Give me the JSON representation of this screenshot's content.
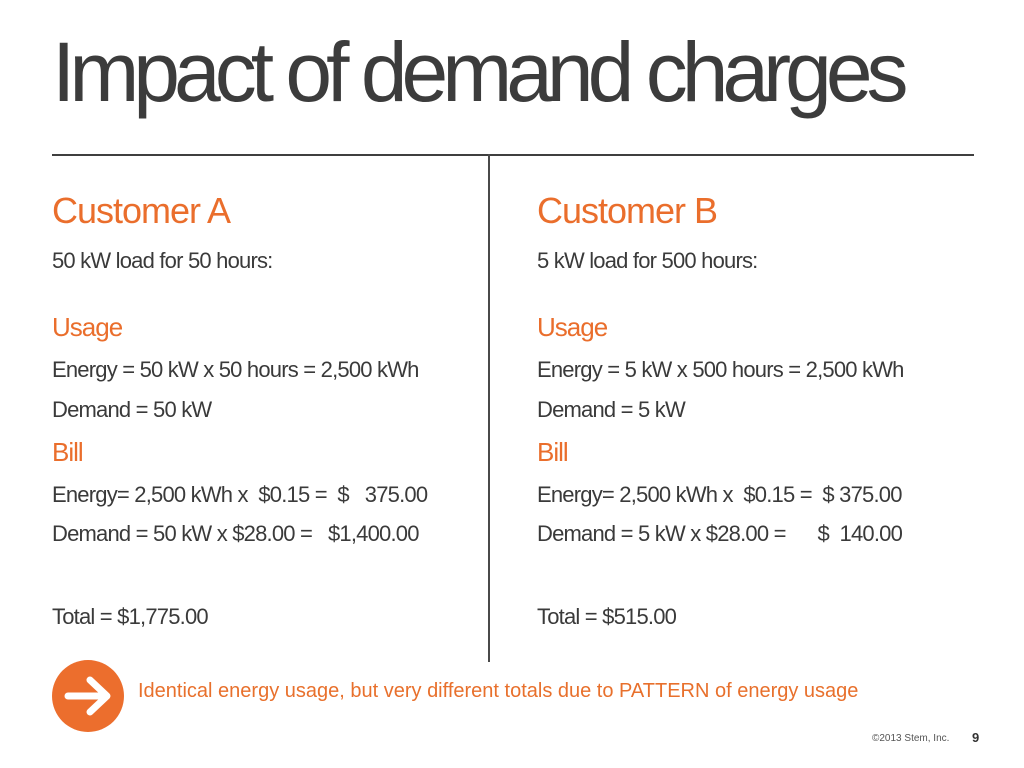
{
  "title": "Impact of demand charges",
  "customer_a": {
    "heading": "Customer  A",
    "load": "50 kW load for 50 hours:",
    "usage_heading": "Usage",
    "energy_usage": "Energy = 50 kW x 50 hours = 2,500 kWh",
    "demand_usage": "Demand = 50 kW",
    "bill_heading": "Bill",
    "energy_bill": "Energy= 2,500 kWh x  $0.15 =  $   375.00",
    "demand_bill": "Demand = 50 kW x $28.00 =   $1,400.00",
    "total": "Total = $1,775.00"
  },
  "customer_b": {
    "heading": "Customer B",
    "load": "5 kW load for 500 hours:",
    "usage_heading": "Usage",
    "energy_usage": "Energy = 5 kW x 500 hours = 2,500 kWh",
    "demand_usage": "Demand = 5 kW",
    "bill_heading": "Bill",
    "energy_bill": "Energy= 2,500 kWh x  $0.15 =  $ 375.00",
    "demand_bill": "Demand = 5 kW x $28.00 =      $  140.00",
    "total": "Total = $515.00"
  },
  "callout": "Identical energy usage, but very different totals due to PATTERN of energy usage",
  "footer": {
    "copyright": "©2013 Stem, Inc.",
    "page_number": "9"
  },
  "colors": {
    "accent": "#ea6e2c",
    "text": "#3a3a3a"
  },
  "icons": {
    "callout_icon": "arrow-right-circle-icon"
  }
}
